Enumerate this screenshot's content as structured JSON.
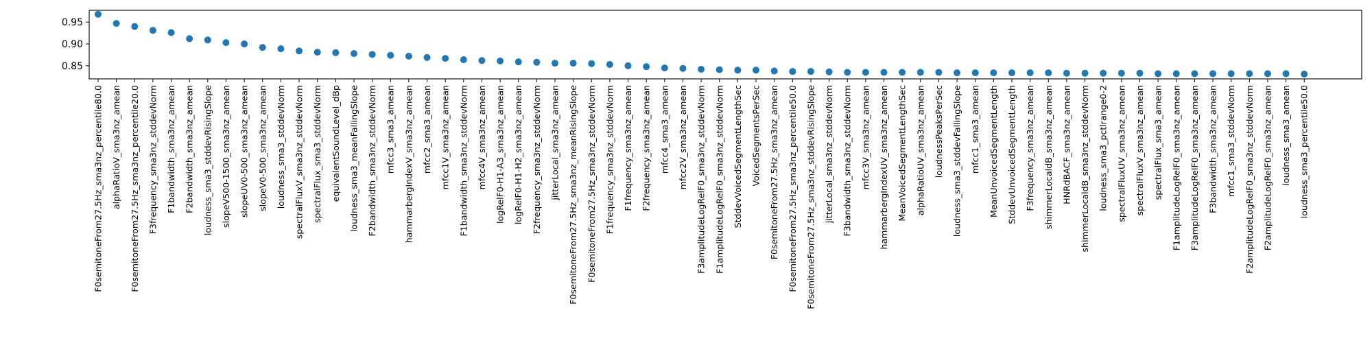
{
  "chart_data": {
    "type": "scatter",
    "title": "",
    "xlabel": "",
    "ylabel": "",
    "ylim": [
      0.82,
      0.977
    ],
    "yticks": [
      0.85,
      0.9,
      0.95
    ],
    "ytick_labels": [
      "0.85",
      "0.90",
      "0.95"
    ],
    "grid": false,
    "legend": "none",
    "colors": {
      "marker": "#1f77b4",
      "axes": "#000000",
      "background": "#ffffff"
    },
    "categories": [
      "F0semitoneFrom27.5Hz_sma3nz_percentile80.0",
      "alphaRatioV_sma3nz_amean",
      "F0semitoneFrom27.5Hz_sma3nz_percentile20.0",
      "F3frequency_sma3nz_stddevNorm",
      "F1bandwidth_sma3nz_amean",
      "F2bandwidth_sma3nz_amean",
      "loudness_sma3_stddevRisingSlope",
      "slopeV500-1500_sma3nz_amean",
      "slopeUV0-500_sma3nz_amean",
      "slopeV0-500_sma3nz_amean",
      "loudness_sma3_stddevNorm",
      "spectralFluxV_sma3nz_stddevNorm",
      "spectralFlux_sma3_stddevNorm",
      "equivalentSoundLevel_dBp",
      "loudness_sma3_meanFallingSlope",
      "F2bandwidth_sma3nz_stddevNorm",
      "mfcc3_sma3_amean",
      "hammarbergIndexV_sma3nz_amean",
      "mfcc2_sma3_amean",
      "mfcc1V_sma3nz_amean",
      "F1bandwidth_sma3nz_stddevNorm",
      "mfcc4V_sma3nz_amean",
      "logRelF0-H1-A3_sma3nz_amean",
      "logRelF0-H1-H2_sma3nz_amean",
      "F2frequency_sma3nz_stddevNorm",
      "jitterLocal_sma3nz_amean",
      "F0semitoneFrom27.5Hz_sma3nz_meanRisingSlope",
      "F0semitoneFrom27.5Hz_sma3nz_stddevNorm",
      "F1frequency_sma3nz_stddevNorm",
      "F1frequency_sma3nz_amean",
      "F2frequency_sma3nz_amean",
      "mfcc4_sma3_amean",
      "mfcc2V_sma3nz_amean",
      "F3amplitudeLogRelF0_sma3nz_stddevNorm",
      "F1amplitudeLogRelF0_sma3nz_stddevNorm",
      "StddevVoicedSegmentLengthSec",
      "VoicedSegmentsPerSec",
      "F0semitoneFrom27.5Hz_sma3nz_amean",
      "F0semitoneFrom27.5Hz_sma3nz_percentile50.0",
      "F0semitoneFrom27.5Hz_sma3nz_stddevRisingSlope",
      "jitterLocal_sma3nz_stddevNorm",
      "F3bandwidth_sma3nz_stddevNorm",
      "mfcc3V_sma3nz_amean",
      "hammarbergIndexUV_sma3nz_amean",
      "MeanVoicedSegmentLengthSec",
      "alphaRatioUV_sma3nz_amean",
      "loudnessPeaksPerSec",
      "loudness_sma3_stddevFallingSlope",
      "mfcc1_sma3_amean",
      "MeanUnvoicedSegmentLength",
      "StddevUnvoicedSegmentLength",
      "F3frequency_sma3nz_amean",
      "shimmerLocaldB_sma3nz_amean",
      "HNRdBACF_sma3nz_amean",
      "shimmerLocaldB_sma3nz_stddevNorm",
      "loudness_sma3_pctlrange0-2",
      "spectralFluxUV_sma3nz_amean",
      "spectralFluxV_sma3nz_amean",
      "spectralFlux_sma3_amean",
      "F1amplitudeLogRelF0_sma3nz_amean",
      "F3amplitudeLogRelF0_sma3nz_amean",
      "F3bandwidth_sma3nz_amean",
      "mfcc1_sma3_stddevNorm",
      "F2amplitudeLogRelF0_sma3nz_stddevNorm",
      "F2amplitudeLogRelF0_sma3nz_amean",
      "loudness_sma3_amean",
      "loudness_sma3_percentile50.0"
    ],
    "values": [
      0.968,
      0.947,
      0.94,
      0.931,
      0.926,
      0.912,
      0.909,
      0.903,
      0.9,
      0.892,
      0.889,
      0.884,
      0.881,
      0.88,
      0.878,
      0.876,
      0.874,
      0.872,
      0.869,
      0.867,
      0.864,
      0.862,
      0.861,
      0.859,
      0.858,
      0.856,
      0.856,
      0.855,
      0.853,
      0.85,
      0.848,
      0.845,
      0.844,
      0.842,
      0.841,
      0.84,
      0.84,
      0.838,
      0.837,
      0.837,
      0.836,
      0.835,
      0.835,
      0.835,
      0.835,
      0.835,
      0.835,
      0.834,
      0.834,
      0.834,
      0.834,
      0.834,
      0.834,
      0.833,
      0.833,
      0.833,
      0.833,
      0.833,
      0.832,
      0.832,
      0.832,
      0.832,
      0.832,
      0.832,
      0.832,
      0.832,
      0.831
    ]
  }
}
